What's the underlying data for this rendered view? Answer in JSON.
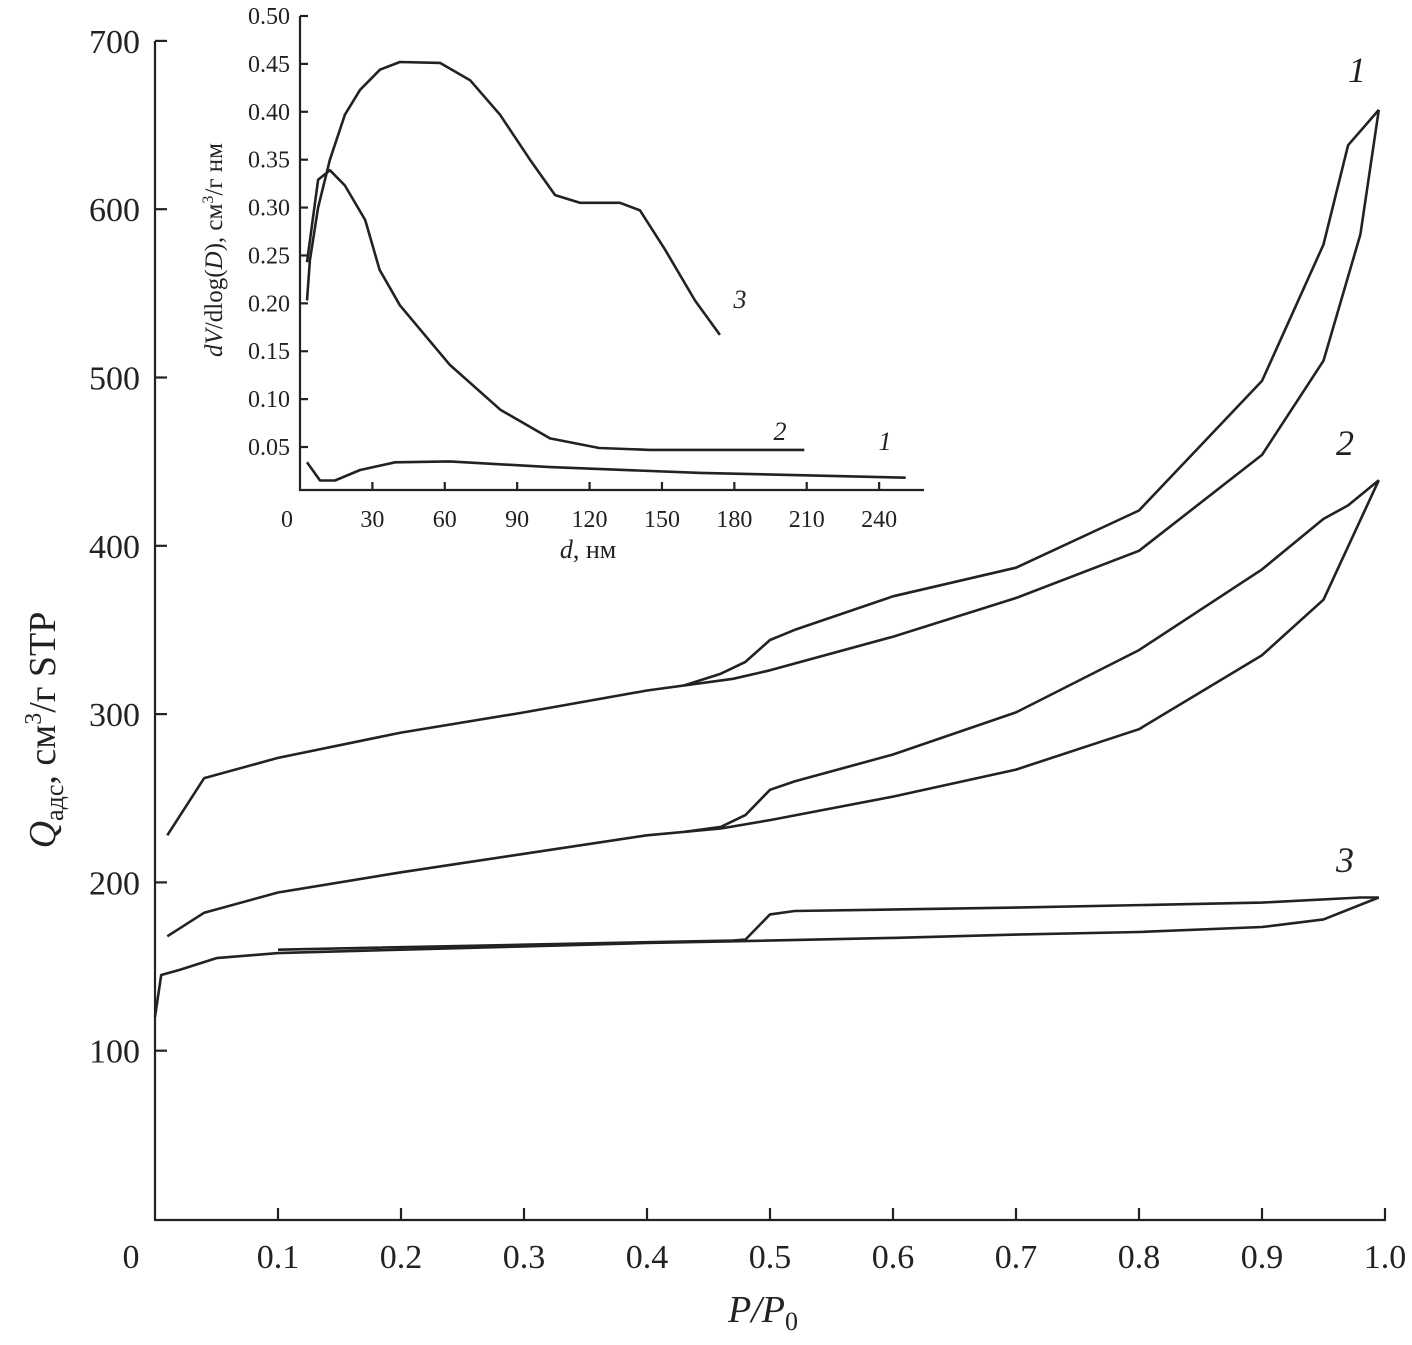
{
  "chart_data": [
    {
      "type": "line",
      "xlabel": "P/P0",
      "ylabel": "Qадс, см³/г STP",
      "xlim": [
        0,
        1.0
      ],
      "ylim": [
        0,
        700
      ],
      "x_ticks": [
        "0",
        "0.1",
        "0.2",
        "0.3",
        "0.4",
        "0.5",
        "0.6",
        "0.7",
        "0.8",
        "0.9",
        "1.0"
      ],
      "y_ticks": [
        "100",
        "200",
        "300",
        "400",
        "500",
        "600",
        "700"
      ],
      "grid": false,
      "series": [
        {
          "name": "1",
          "adsorption": [
            [
              0.01,
              228
            ],
            [
              0.04,
              262
            ],
            [
              0.1,
              274
            ],
            [
              0.2,
              289
            ],
            [
              0.3,
              301
            ],
            [
              0.4,
              314
            ],
            [
              0.47,
              321
            ],
            [
              0.5,
              326
            ],
            [
              0.6,
              346
            ],
            [
              0.7,
              369
            ],
            [
              0.8,
              397
            ],
            [
              0.9,
              454
            ],
            [
              0.95,
              510
            ],
            [
              0.98,
              585
            ],
            [
              0.995,
              659
            ]
          ],
          "desorption": [
            [
              0.995,
              659
            ],
            [
              0.97,
              638
            ],
            [
              0.95,
              579
            ],
            [
              0.9,
              498
            ],
            [
              0.8,
              421
            ],
            [
              0.7,
              387
            ],
            [
              0.6,
              370
            ],
            [
              0.52,
              350
            ],
            [
              0.5,
              344
            ],
            [
              0.48,
              331
            ],
            [
              0.46,
              324
            ],
            [
              0.43,
              317
            ]
          ]
        },
        {
          "name": "2",
          "adsorption": [
            [
              0.01,
              168
            ],
            [
              0.04,
              182
            ],
            [
              0.1,
              194
            ],
            [
              0.2,
              206
            ],
            [
              0.3,
              217
            ],
            [
              0.4,
              228
            ],
            [
              0.46,
              232
            ],
            [
              0.5,
              237
            ],
            [
              0.6,
              251
            ],
            [
              0.7,
              267
            ],
            [
              0.8,
              291
            ],
            [
              0.9,
              335
            ],
            [
              0.95,
              368
            ],
            [
              0.995,
              439
            ]
          ],
          "desorption": [
            [
              0.995,
              439
            ],
            [
              0.97,
              424
            ],
            [
              0.95,
              416
            ],
            [
              0.9,
              386
            ],
            [
              0.8,
              338
            ],
            [
              0.7,
              301
            ],
            [
              0.6,
              276
            ],
            [
              0.52,
              260
            ],
            [
              0.5,
              255
            ],
            [
              0.48,
              240
            ],
            [
              0.46,
              233
            ],
            [
              0.43,
              230
            ]
          ]
        },
        {
          "name": "3",
          "adsorption": [
            [
              0.0,
              120
            ],
            [
              0.005,
              145
            ],
            [
              0.02,
              148
            ],
            [
              0.05,
              155
            ],
            [
              0.1,
              158
            ],
            [
              0.2,
              160
            ],
            [
              0.3,
              162
            ],
            [
              0.4,
              164
            ],
            [
              0.47,
              165
            ],
            [
              0.6,
              167
            ],
            [
              0.7,
              169
            ],
            [
              0.8,
              170.5
            ],
            [
              0.9,
              173.5
            ],
            [
              0.95,
              178
            ],
            [
              0.995,
              191
            ]
          ],
          "desorption": [
            [
              0.995,
              191
            ],
            [
              0.98,
              191
            ],
            [
              0.9,
              188
            ],
            [
              0.7,
              185
            ],
            [
              0.52,
              183
            ],
            [
              0.5,
              181
            ],
            [
              0.48,
              166
            ],
            [
              0.47,
              165.5
            ],
            [
              0.3,
              163
            ],
            [
              0.1,
              160
            ]
          ]
        }
      ]
    },
    {
      "type": "line",
      "xlabel": "d, нм",
      "ylabel": "dV/dlog(D), см³/г нм",
      "xlim": [
        0,
        250
      ],
      "ylim": [
        0,
        0.5
      ],
      "x_ticks": [
        "0",
        "30",
        "60",
        "90",
        "120",
        "150",
        "180",
        "210",
        "240"
      ],
      "y_ticks": [
        "0.05",
        "0.10",
        "0.15",
        "0.20",
        "0.25",
        "0.30",
        "0.35",
        "0.40",
        "0.45",
        "0.50"
      ],
      "grid": false,
      "series": [
        {
          "name": "1",
          "points": [
            [
              2.9,
              0.034
            ],
            [
              8.3,
              0.015
            ],
            [
              14.5,
              0.015
            ],
            [
              24.9,
              0.026
            ],
            [
              39.4,
              0.034
            ],
            [
              62,
              0.035
            ],
            [
              103.6,
              0.029
            ],
            [
              166,
              0.023
            ],
            [
              251,
              0.018
            ]
          ]
        },
        {
          "name": "2",
          "points": [
            [
              2.9,
              0.243
            ],
            [
              7.5,
              0.329
            ],
            [
              12.4,
              0.339
            ],
            [
              18.6,
              0.323
            ],
            [
              27,
              0.287
            ],
            [
              33,
              0.235
            ],
            [
              41.4,
              0.198
            ],
            [
              62,
              0.136
            ],
            [
              83,
              0.089
            ],
            [
              103.6,
              0.059
            ],
            [
              124,
              0.049
            ],
            [
              145,
              0.047
            ],
            [
              209,
              0.047
            ]
          ]
        },
        {
          "name": "3",
          "points": [
            [
              2.9,
              0.203
            ],
            [
              4.1,
              0.245
            ],
            [
              7.5,
              0.3
            ],
            [
              12.4,
              0.35
            ],
            [
              18.6,
              0.397
            ],
            [
              24.9,
              0.423
            ],
            [
              33.2,
              0.444
            ],
            [
              41.4,
              0.452
            ],
            [
              58,
              0.451
            ],
            [
              70.5,
              0.433
            ],
            [
              82.9,
              0.397
            ],
            [
              95.3,
              0.35
            ],
            [
              105.7,
              0.313
            ],
            [
              116,
              0.305
            ],
            [
              132.6,
              0.305
            ],
            [
              140.9,
              0.297
            ],
            [
              151.3,
              0.256
            ],
            [
              163.7,
              0.203
            ],
            [
              174,
              0.167
            ]
          ]
        }
      ]
    }
  ]
}
